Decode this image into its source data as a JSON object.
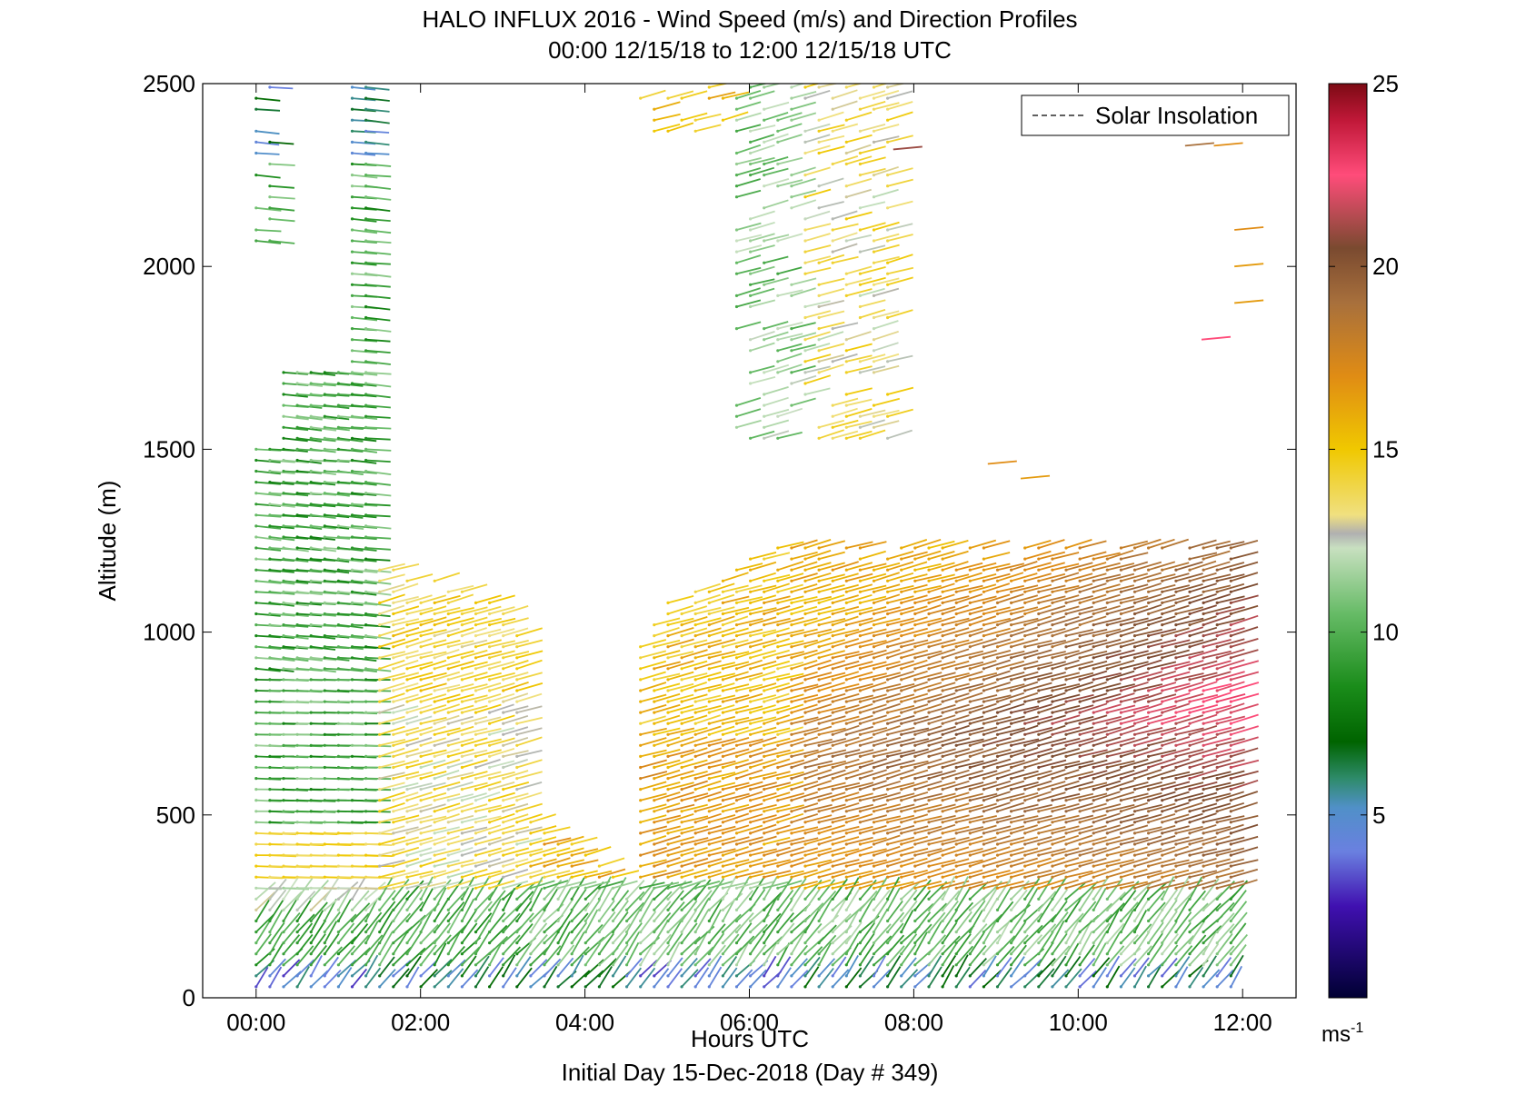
{
  "chart_data": {
    "type": "quiver",
    "title": "HALO INFLUX 2016 - Wind Speed (m/s) and Direction Profiles",
    "subtitle": "00:00 12/15/18 to 12:00 12/15/18  UTC",
    "xlabel": "Hours UTC",
    "footer": "Initial Day 15-Dec-2018 (Day # 349)",
    "ylabel": "Altitude (m)",
    "xlim": [
      -0.65,
      12.65
    ],
    "ylim": [
      0,
      2500
    ],
    "x_ticks": [
      0,
      2,
      4,
      6,
      8,
      10,
      12
    ],
    "x_tick_labels": [
      "00:00",
      "02:00",
      "04:00",
      "06:00",
      "08:00",
      "10:00",
      "12:00"
    ],
    "y_ticks": [
      0,
      500,
      1000,
      1500,
      2000,
      2500
    ],
    "y_tick_labels": [
      "0",
      "500",
      "1000",
      "1500",
      "2000",
      "2500"
    ],
    "legend": {
      "label": "Solar Insolation",
      "placement": "top-right"
    },
    "colorbar": {
      "range": [
        0,
        25
      ],
      "ticks": [
        5,
        10,
        15,
        20,
        25
      ],
      "tick_labels": [
        "5",
        "10",
        "15",
        "20",
        "25"
      ],
      "unit": "ms",
      "unit_exp": "-1",
      "stops": [
        {
          "v": 0,
          "c": "#000033"
        },
        {
          "v": 2.5,
          "c": "#4010b0"
        },
        {
          "v": 4,
          "c": "#6a80e0"
        },
        {
          "v": 5.2,
          "c": "#5090c8"
        },
        {
          "v": 6,
          "c": "#2e8b6a"
        },
        {
          "v": 7,
          "c": "#006400"
        },
        {
          "v": 8.5,
          "c": "#1a8c1a"
        },
        {
          "v": 10.5,
          "c": "#66bb66"
        },
        {
          "v": 12.3,
          "c": "#c8e0c0"
        },
        {
          "v": 12.7,
          "c": "#b0b0b0"
        },
        {
          "v": 13.2,
          "c": "#f0e080"
        },
        {
          "v": 15,
          "c": "#f0c800"
        },
        {
          "v": 17,
          "c": "#e08c14"
        },
        {
          "v": 19,
          "c": "#a8703c"
        },
        {
          "v": 20.5,
          "c": "#7a4a30"
        },
        {
          "v": 22.5,
          "c": "#ff4c7a"
        },
        {
          "v": 24,
          "c": "#c01838"
        },
        {
          "v": 25,
          "c": "#7c0a14"
        }
      ]
    },
    "vector_field": {
      "x_spacing_hours": 0.167,
      "y_spacing_m": 30,
      "direction_convention": "arrow points toward wind travel; screen angle derived from u/v components",
      "profiles": [
        {
          "t_start": 0.0,
          "t_end": 1.45,
          "z_top": 2500,
          "speed_range": [
            2.5,
            10
          ],
          "note": "low-level blue/purple, green aloft, yellow-green band 250-450 m"
        },
        {
          "t_start": 1.45,
          "t_end": 3.2,
          "z_top": 1200,
          "speed_range": [
            7,
            15
          ],
          "note": "green near surface, yellow aloft"
        },
        {
          "t_start": 3.2,
          "t_end": 4.6,
          "z_top": 600,
          "speed_range": [
            7,
            17
          ],
          "note": "sparse coverage"
        },
        {
          "t_start": 4.6,
          "t_end": 6.4,
          "z_top": 1500,
          "speed_range": [
            5,
            16
          ],
          "note": "yellow/orange aloft"
        },
        {
          "t_start": 6.4,
          "t_end": 12.0,
          "z_top": 1300,
          "speed_range": [
            5,
            23
          ],
          "note": "jet of 21-23 m/s near 700-900 m, brown/orange aloft"
        },
        {
          "t_start": 5.8,
          "t_end": 7.8,
          "z_top": 2500,
          "z_bottom": 1500,
          "speed_range": [
            9,
            15
          ],
          "note": "upper-level green/yellow arrows"
        }
      ]
    }
  }
}
